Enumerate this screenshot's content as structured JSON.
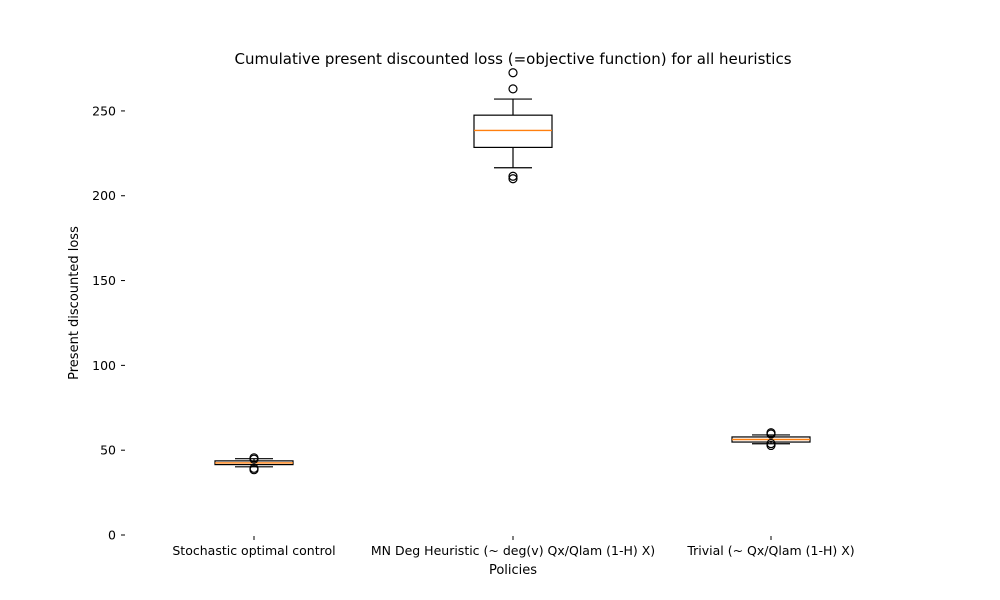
{
  "chart_data": {
    "type": "box",
    "title": "Cumulative present discounted loss (=objective function) for all heuristics",
    "xlabel": "Policies",
    "ylabel": "Present discounted loss",
    "ylim": [
      0,
      270
    ],
    "yticks": [
      0,
      50,
      100,
      150,
      200,
      250
    ],
    "grid": false,
    "categories": [
      "Stochastic optimal control",
      "MN Deg Heuristic (~ deg(v) Qx/Qlam (1-H) X)",
      "Trivial (~ Qx/Qlam (1-H) X)"
    ],
    "boxes": [
      {
        "whisker_low": 40.2,
        "q1": 41.5,
        "median": 42.5,
        "q3": 43.7,
        "whisker_high": 45.0,
        "outliers": [
          38.5,
          39.3,
          44.7,
          45.5
        ]
      },
      {
        "whisker_low": 216.5,
        "q1": 228.5,
        "median": 238.5,
        "q3": 247.5,
        "whisker_high": 257.0,
        "outliers": [
          210.0,
          211.5,
          263.0,
          272.5
        ]
      },
      {
        "whisker_low": 53.8,
        "q1": 54.8,
        "median": 56.3,
        "q3": 57.8,
        "whisker_high": 59.0,
        "outliers": [
          52.8,
          53.9,
          59.5,
          60.3
        ]
      }
    ],
    "colors": {
      "box": "#000000",
      "median": "#ff7f0e"
    }
  }
}
